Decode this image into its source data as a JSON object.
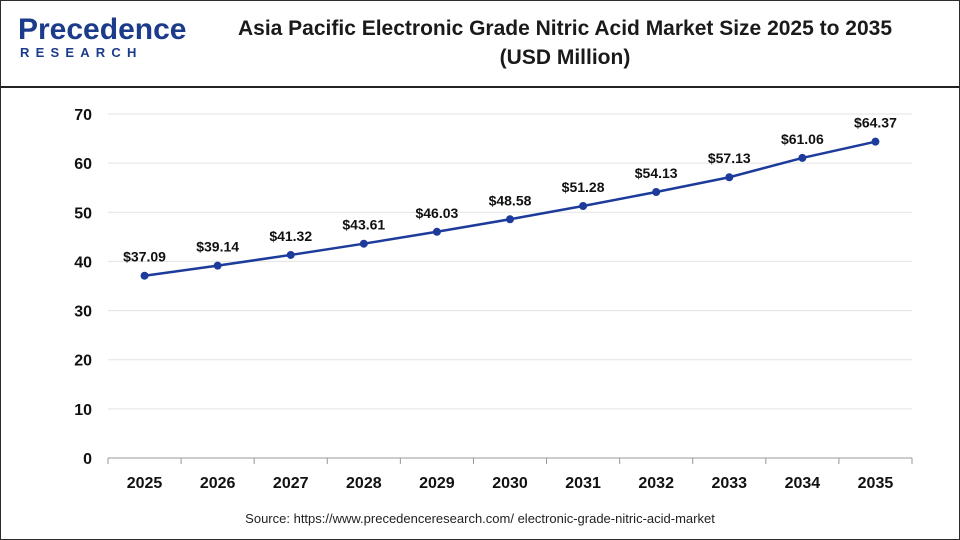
{
  "brand": {
    "name_top": "Precedence",
    "name_bottom": "RESEARCH",
    "accent": "#1d3b8b"
  },
  "header": {
    "title_line1": "Asia Pacific Electronic Grade Nitric Acid Market Size 2025 to 2035",
    "title_line2": "(USD Million)"
  },
  "footer": {
    "source": "Source: https://www.precedenceresearch.com/ electronic-grade-nitric-acid-market"
  },
  "chart_data": {
    "type": "line",
    "x": [
      "2025",
      "2026",
      "2027",
      "2028",
      "2029",
      "2030",
      "2031",
      "2032",
      "2033",
      "2034",
      "2035"
    ],
    "series": [
      {
        "values": [
          37.09,
          39.14,
          41.32,
          43.61,
          46.03,
          48.58,
          51.28,
          54.13,
          57.13,
          61.06,
          64.37
        ],
        "labels": [
          "$37.09",
          "$39.14",
          "$41.32",
          "$43.61",
          "$46.03",
          "$48.58",
          "$51.28",
          "$54.13",
          "$57.13",
          "$61.06",
          "$64.37"
        ],
        "color": "#1d3b9b"
      }
    ],
    "ylim": [
      0,
      70
    ],
    "yticks": [
      "0",
      "10",
      "20",
      "30",
      "40",
      "50",
      "60",
      "70"
    ],
    "grid": true,
    "gridColor": "#e3e3e3"
  }
}
